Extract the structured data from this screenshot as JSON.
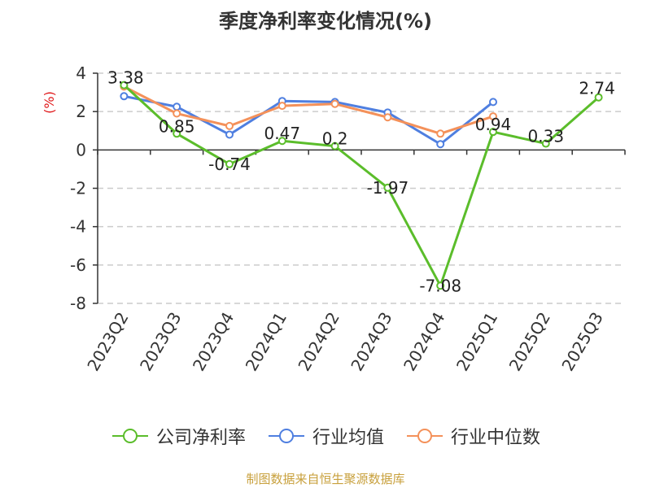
{
  "title": "季度净利率变化情况(%)",
  "source": "制图数据来自恒生聚源数据库",
  "chart_data": {
    "type": "line",
    "title": "季度净利率变化情况(%)",
    "ylabel": "(%)",
    "xlabel": "",
    "ylim": [
      -8,
      4
    ],
    "yticks": [
      -8,
      -6,
      -4,
      -2,
      0,
      2,
      4
    ],
    "grid": true,
    "legend_position": "bottom",
    "categories": [
      "2023Q2",
      "2023Q3",
      "2023Q4",
      "2024Q1",
      "2024Q2",
      "2024Q3",
      "2024Q4",
      "2025Q1",
      "2025Q2",
      "2025Q3"
    ],
    "series": [
      {
        "name": "公司净利率",
        "color": "#5bbd2b",
        "values": [
          3.38,
          0.85,
          -0.74,
          0.47,
          0.2,
          -1.97,
          -7.08,
          0.94,
          0.33,
          2.74
        ],
        "labels": [
          "3.38",
          "0.85",
          "-0.74",
          "0.47",
          "0.2",
          "-1.97",
          "-7.08",
          "0.94",
          "0.33",
          "2.74"
        ]
      },
      {
        "name": "行业均值",
        "color": "#4f7fe0",
        "values": [
          2.8,
          2.25,
          0.8,
          2.55,
          2.5,
          1.95,
          0.3,
          2.5,
          null,
          null
        ]
      },
      {
        "name": "行业中位数",
        "color": "#f4915a",
        "values": [
          3.3,
          1.9,
          1.25,
          2.3,
          2.4,
          1.7,
          0.85,
          1.75,
          null,
          null
        ]
      }
    ]
  }
}
